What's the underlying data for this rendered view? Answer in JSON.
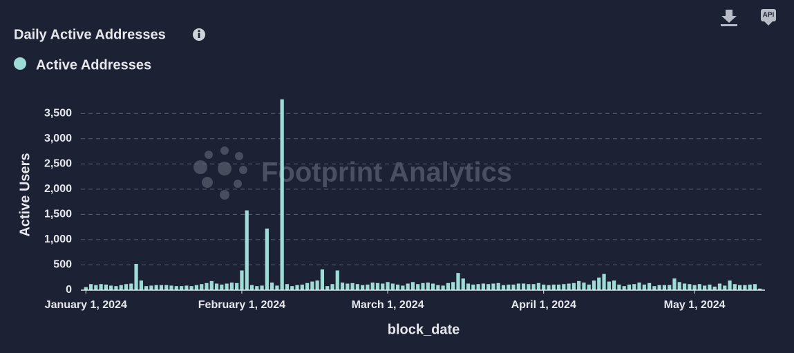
{
  "chart_data": {
    "type": "bar",
    "title": "Daily Active Addresses",
    "legend": "Active Addresses",
    "watermark": "Footprint Analytics",
    "api_button": "API",
    "y_label": "Active Users",
    "x_label": "block_date",
    "color": "#9fdcd8",
    "grid": true,
    "x": [
      "2024-01-01",
      "2024-01-02",
      "2024-01-03",
      "2024-01-04",
      "2024-01-05",
      "2024-01-06",
      "2024-01-07",
      "2024-01-08",
      "2024-01-09",
      "2024-01-10",
      "2024-01-11",
      "2024-01-12",
      "2024-01-13",
      "2024-01-14",
      "2024-01-15",
      "2024-01-16",
      "2024-01-17",
      "2024-01-18",
      "2024-01-19",
      "2024-01-20",
      "2024-01-21",
      "2024-01-22",
      "2024-01-23",
      "2024-01-24",
      "2024-01-25",
      "2024-01-26",
      "2024-01-27",
      "2024-01-28",
      "2024-01-29",
      "2024-01-30",
      "2024-01-31",
      "2024-02-01",
      "2024-02-02",
      "2024-02-03",
      "2024-02-04",
      "2024-02-05",
      "2024-02-06",
      "2024-02-07",
      "2024-02-08",
      "2024-02-09",
      "2024-02-10",
      "2024-02-11",
      "2024-02-12",
      "2024-02-13",
      "2024-02-14",
      "2024-02-15",
      "2024-02-16",
      "2024-02-17",
      "2024-02-18",
      "2024-02-19",
      "2024-02-20",
      "2024-02-21",
      "2024-02-22",
      "2024-02-23",
      "2024-02-24",
      "2024-02-25",
      "2024-02-26",
      "2024-02-27",
      "2024-02-28",
      "2024-02-29",
      "2024-03-01",
      "2024-03-02",
      "2024-03-03",
      "2024-03-04",
      "2024-03-05",
      "2024-03-06",
      "2024-03-07",
      "2024-03-08",
      "2024-03-09",
      "2024-03-10",
      "2024-03-11",
      "2024-03-12",
      "2024-03-13",
      "2024-03-14",
      "2024-03-15",
      "2024-03-16",
      "2024-03-17",
      "2024-03-18",
      "2024-03-19",
      "2024-03-20",
      "2024-03-21",
      "2024-03-22",
      "2024-03-23",
      "2024-03-24",
      "2024-03-25",
      "2024-03-26",
      "2024-03-27",
      "2024-03-28",
      "2024-03-29",
      "2024-03-30",
      "2024-03-31",
      "2024-04-01",
      "2024-04-02",
      "2024-04-03",
      "2024-04-04",
      "2024-04-05",
      "2024-04-06",
      "2024-04-07",
      "2024-04-08",
      "2024-04-09",
      "2024-04-10",
      "2024-04-11",
      "2024-04-12",
      "2024-04-13",
      "2024-04-14",
      "2024-04-15",
      "2024-04-16",
      "2024-04-17",
      "2024-04-18",
      "2024-04-19",
      "2024-04-20",
      "2024-04-21",
      "2024-04-22",
      "2024-04-23",
      "2024-04-24",
      "2024-04-25",
      "2024-04-26",
      "2024-04-27",
      "2024-04-28",
      "2024-04-29",
      "2024-04-30",
      "2024-05-01",
      "2024-05-02",
      "2024-05-03",
      "2024-05-04",
      "2024-05-05",
      "2024-05-06",
      "2024-05-07",
      "2024-05-08",
      "2024-05-09",
      "2024-05-10",
      "2024-05-11",
      "2024-05-12",
      "2024-05-13",
      "2024-05-14"
    ],
    "values": [
      60,
      120,
      100,
      120,
      110,
      90,
      80,
      100,
      120,
      130,
      520,
      190,
      80,
      90,
      100,
      100,
      100,
      90,
      80,
      80,
      90,
      80,
      100,
      120,
      140,
      180,
      130,
      110,
      130,
      150,
      140,
      390,
      1580,
      100,
      80,
      90,
      1220,
      150,
      90,
      3780,
      120,
      80,
      100,
      110,
      140,
      170,
      190,
      410,
      80,
      120,
      390,
      150,
      130,
      140,
      120,
      100,
      110,
      150,
      140,
      130,
      160,
      130,
      110,
      90,
      130,
      160,
      120,
      140,
      150,
      130,
      100,
      90,
      140,
      160,
      340,
      230,
      130,
      110,
      120,
      130,
      120,
      130,
      140,
      100,
      110,
      110,
      130,
      130,
      120,
      120,
      140,
      110,
      100,
      110,
      110,
      120,
      130,
      140,
      180,
      150,
      110,
      190,
      250,
      320,
      170,
      190,
      110,
      80,
      110,
      120,
      150,
      110,
      140,
      80,
      100,
      100,
      100,
      230,
      160,
      130,
      120,
      100,
      120,
      90,
      110,
      70,
      130,
      90,
      190,
      120,
      100,
      100,
      110,
      120,
      30
    ],
    "xlim": [
      "2023-12-31",
      "2024-05-15"
    ],
    "xticks": [
      {
        "value": "2024-01-01",
        "label": "January 1, 2024"
      },
      {
        "value": "2024-02-01",
        "label": "February 1, 2024"
      },
      {
        "value": "2024-03-01",
        "label": "March 1, 2024"
      },
      {
        "value": "2024-04-01",
        "label": "April 1, 2024"
      },
      {
        "value": "2024-05-01",
        "label": "May 1, 2024"
      }
    ],
    "ylim": [
      0,
      3900
    ],
    "yticks": [
      0,
      500,
      {
        "value": 1000,
        "label": "1,000"
      },
      {
        "value": 1500,
        "label": "1,500"
      },
      {
        "value": 2000,
        "label": "2,000"
      },
      {
        "value": 2500,
        "label": "2,500"
      },
      {
        "value": 3000,
        "label": "3,000"
      },
      {
        "value": 3500,
        "label": "3,500"
      }
    ]
  }
}
